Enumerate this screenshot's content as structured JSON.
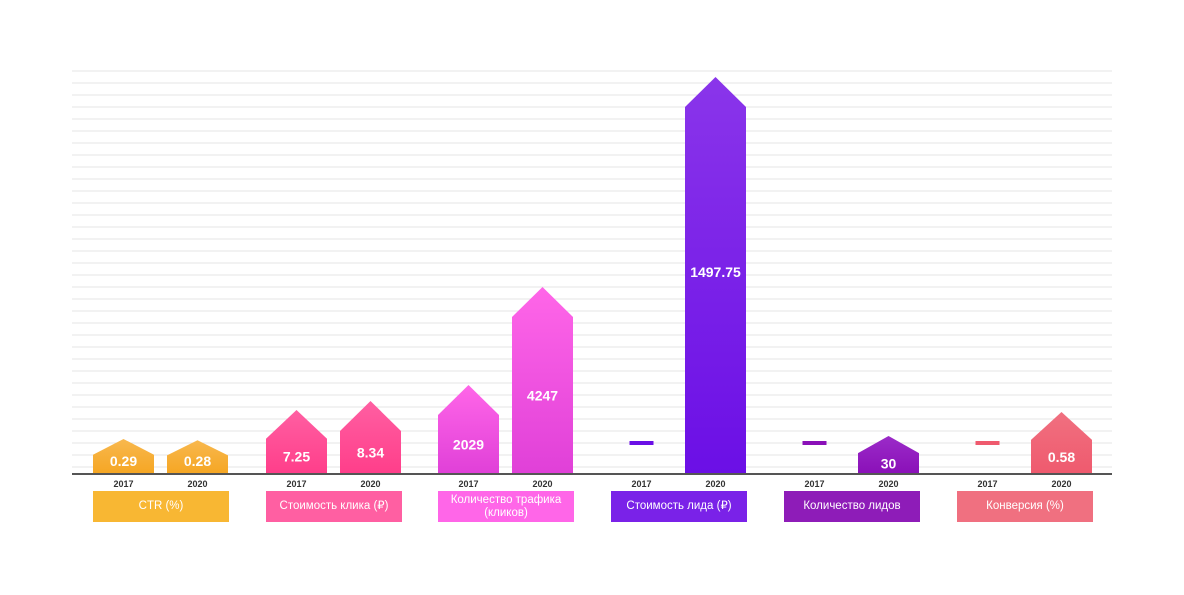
{
  "chart_data": {
    "type": "bar",
    "groups": [
      {
        "name": "CTR (%)",
        "color": "#f5a623",
        "color_light": "#f8b84e",
        "values": [
          0.29,
          0.28
        ]
      },
      {
        "name": "Стоимость клика (₽)",
        "color": "#ff3e8a",
        "color_light": "#ff5fa2",
        "values": [
          7.25,
          8.34
        ]
      },
      {
        "name": "Количество трафика (кликов)",
        "color": "#e040d8",
        "color_light": "#ff66e8",
        "values": [
          2029,
          4247
        ]
      },
      {
        "name": "Стоимость лида (₽)",
        "color": "#6b0fe6",
        "color_light": "#8a35ea",
        "values": [
          null,
          1497.75
        ]
      },
      {
        "name": "Количество лидов",
        "color": "#8a10b8",
        "color_light": "#9b2bc8",
        "values": [
          null,
          30
        ]
      },
      {
        "name": "Конверсия (%)",
        "color": "#ef5a6e",
        "color_light": "#f07080",
        "values": [
          null,
          0.58
        ]
      }
    ],
    "years": [
      "2017",
      "2020"
    ],
    "value_labels": [
      [
        "0.29",
        "0.28"
      ],
      [
        "7.25",
        "8.34"
      ],
      [
        "2029",
        "4247"
      ],
      [
        "",
        "1497.75"
      ],
      [
        "",
        "30"
      ],
      [
        "",
        "0.58"
      ]
    ],
    "grid": true,
    "legend": "none"
  }
}
